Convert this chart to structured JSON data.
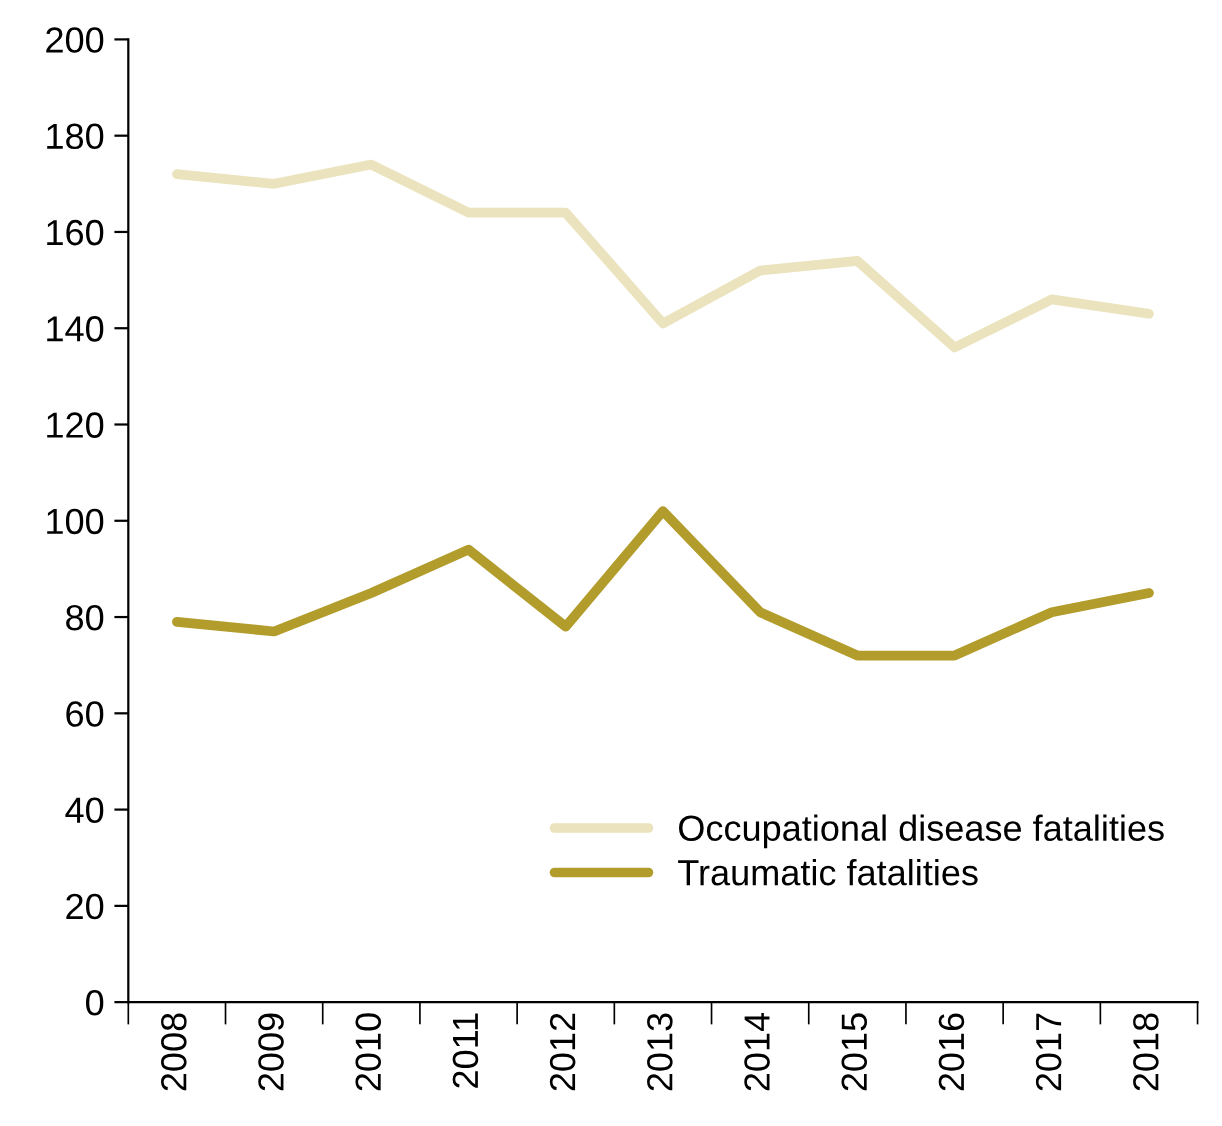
{
  "chart_data": {
    "type": "line",
    "categories": [
      "2008",
      "2009",
      "2010",
      "2011",
      "2012",
      "2013",
      "2014",
      "2015",
      "2016",
      "2017",
      "2018"
    ],
    "series": [
      {
        "name": "Occupational disease fatalities",
        "color": "#ebe3bd",
        "values": [
          172,
          170,
          174,
          164,
          164,
          141,
          152,
          154,
          136,
          146,
          143
        ]
      },
      {
        "name": "Traumatic fatalities",
        "color": "#b29c2c",
        "values": [
          79,
          77,
          85,
          94,
          78,
          102,
          81,
          72,
          72,
          81,
          85
        ]
      }
    ],
    "ylim": [
      0,
      200
    ],
    "yticks": [
      0,
      20,
      40,
      60,
      80,
      100,
      120,
      140,
      160,
      180,
      200
    ],
    "grid": false,
    "legend": "bottom right",
    "marker": "none",
    "line_style": "solid"
  }
}
